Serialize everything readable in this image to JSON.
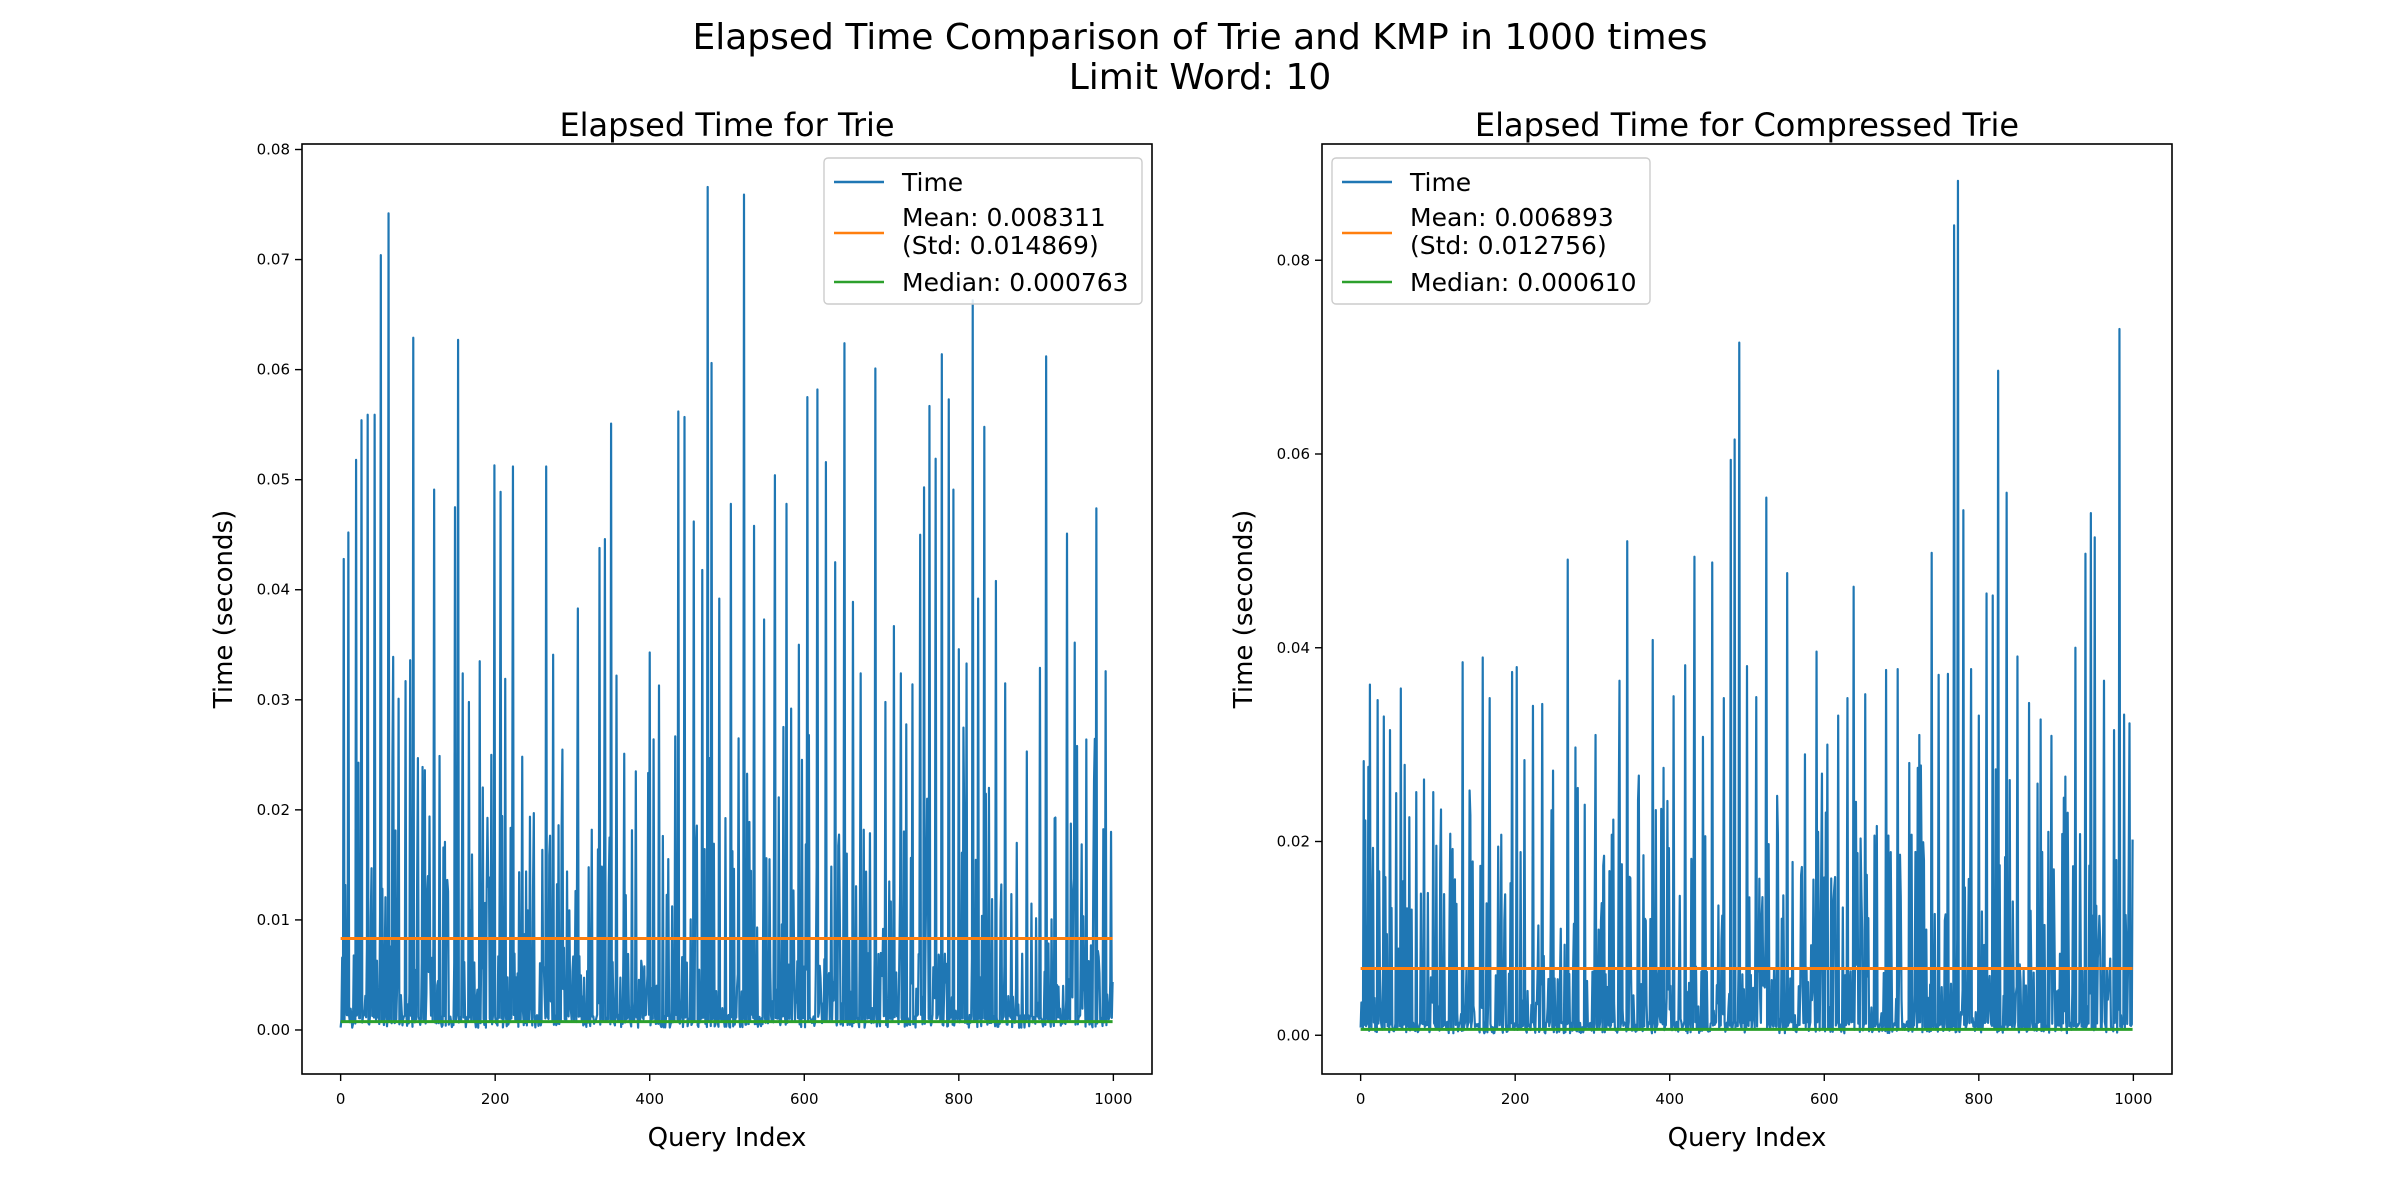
{
  "figure": {
    "suptitle_line1": "Elapsed Time Comparison of Trie and KMP in 1000 times",
    "suptitle_line2": "Limit Word: 10"
  },
  "chart_data": [
    {
      "type": "line",
      "title": "Elapsed Time for Trie",
      "xlabel": "Query Index",
      "ylabel": "Time (seconds)",
      "xlim": [
        -50,
        1050
      ],
      "ylim": [
        -0.004,
        0.0805
      ],
      "xticks": [
        0,
        200,
        400,
        600,
        800,
        1000
      ],
      "yticks": [
        0.0,
        0.01,
        0.02,
        0.03,
        0.04,
        0.05,
        0.06,
        0.07,
        0.08
      ],
      "ytick_decimals": 2,
      "legend_position": "upper right",
      "series": [
        {
          "name": "Time",
          "color": "#1f77b4",
          "num_points": 1000,
          "values_note": "",
          "peaks": [
            [
              4,
              0.0428
            ],
            [
              10,
              0.0452
            ],
            [
              20,
              0.0518
            ],
            [
              27,
              0.0554
            ],
            [
              35,
              0.0559
            ],
            [
              44,
              0.0559
            ],
            [
              52,
              0.0704
            ],
            [
              62,
              0.0742
            ],
            [
              68,
              0.0339
            ],
            [
              75,
              0.0301
            ],
            [
              84,
              0.0317
            ],
            [
              90,
              0.0336
            ],
            [
              94,
              0.0629
            ],
            [
              100,
              0.0247
            ],
            [
              106,
              0.0239
            ],
            [
              121,
              0.0491
            ],
            [
              128,
              0.0249
            ],
            [
              139,
              0.0126
            ],
            [
              148,
              0.0475
            ],
            [
              152,
              0.0627
            ],
            [
              158,
              0.0324
            ],
            [
              166,
              0.0298
            ],
            [
              180,
              0.0335
            ],
            [
              195,
              0.025
            ],
            [
              199,
              0.0513
            ],
            [
              207,
              0.0489
            ],
            [
              213,
              0.0319
            ],
            [
              223,
              0.0512
            ],
            [
              240,
              0.0144
            ],
            [
              250,
              0.0197
            ],
            [
              266,
              0.0512
            ],
            [
              275,
              0.0341
            ],
            [
              282,
              0.0186
            ],
            [
              293,
              0.0144
            ],
            [
              307,
              0.0383
            ],
            [
              325,
              0.0182
            ],
            [
              335,
              0.0438
            ],
            [
              342,
              0.0446
            ],
            [
              350,
              0.0551
            ],
            [
              357,
              0.0322
            ],
            [
              367,
              0.0251
            ],
            [
              382,
              0.0235
            ],
            [
              400,
              0.0343
            ],
            [
              412,
              0.0313
            ],
            [
              437,
              0.0562
            ],
            [
              445,
              0.0557
            ],
            [
              457,
              0.0462
            ],
            [
              468,
              0.0418
            ],
            [
              475,
              0.0766
            ],
            [
              480,
              0.0606
            ],
            [
              490,
              0.0392
            ],
            [
              505,
              0.0478
            ],
            [
              515,
              0.0265
            ],
            [
              522,
              0.0759
            ],
            [
              535,
              0.0458
            ],
            [
              548,
              0.0373
            ],
            [
              562,
              0.0504
            ],
            [
              577,
              0.0478
            ],
            [
              583,
              0.0292
            ],
            [
              593,
              0.035
            ],
            [
              604,
              0.0575
            ],
            [
              617,
              0.0582
            ],
            [
              628,
              0.0516
            ],
            [
              640,
              0.0425
            ],
            [
              652,
              0.0624
            ],
            [
              663,
              0.0389
            ],
            [
              673,
              0.0324
            ],
            [
              692,
              0.0601
            ],
            [
              705,
              0.0298
            ],
            [
              716,
              0.0367
            ],
            [
              725,
              0.0324
            ],
            [
              740,
              0.0314
            ],
            [
              750,
              0.045
            ],
            [
              755,
              0.0493
            ],
            [
              762,
              0.0567
            ],
            [
              770,
              0.0519
            ],
            [
              778,
              0.0614
            ],
            [
              787,
              0.0573
            ],
            [
              793,
              0.0491
            ],
            [
              800,
              0.0346
            ],
            [
              810,
              0.0333
            ],
            [
              818,
              0.0663
            ],
            [
              825,
              0.0392
            ],
            [
              833,
              0.0548
            ],
            [
              848,
              0.0408
            ],
            [
              860,
              0.0315
            ],
            [
              875,
              0.017
            ],
            [
              888,
              0.0253
            ],
            [
              905,
              0.0329
            ],
            [
              913,
              0.0612
            ],
            [
              925,
              0.0193
            ],
            [
              940,
              0.0451
            ],
            [
              950,
              0.0352
            ],
            [
              965,
              0.0264
            ],
            [
              978,
              0.0474
            ],
            [
              990,
              0.0326
            ],
            [
              997,
              0.018
            ]
          ]
        },
        {
          "name": "Mean: 0.008311\n(Std: 0.014869)",
          "color": "#ff7f0e",
          "value": 0.008311
        },
        {
          "name": "Median: 0.000763",
          "color": "#2ca02c",
          "value": 0.000763
        }
      ]
    },
    {
      "type": "line",
      "title": "Elapsed Time for Compressed Trie",
      "xlabel": "Query Index",
      "ylabel": "Time (seconds)",
      "xlim": [
        -50,
        1050
      ],
      "ylim": [
        -0.004,
        0.092
      ],
      "xticks": [
        0,
        200,
        400,
        600,
        800,
        1000
      ],
      "yticks": [
        0.0,
        0.02,
        0.04,
        0.06,
        0.08
      ],
      "ytick_decimals": 2,
      "legend_position": "upper left",
      "series": [
        {
          "name": "Time",
          "color": "#1f77b4",
          "num_points": 1000,
          "values_note": "",
          "peaks": [
            [
              4,
              0.0283
            ],
            [
              12,
              0.0362
            ],
            [
              22,
              0.0346
            ],
            [
              30,
              0.0329
            ],
            [
              38,
              0.0315
            ],
            [
              46,
              0.025
            ],
            [
              52,
              0.0358
            ],
            [
              63,
              0.0225
            ],
            [
              72,
              0.0251
            ],
            [
              82,
              0.0264
            ],
            [
              94,
              0.0251
            ],
            [
              104,
              0.0233
            ],
            [
              116,
              0.0208
            ],
            [
              132,
              0.0385
            ],
            [
              142,
              0.0227
            ],
            [
              158,
              0.039
            ],
            [
              167,
              0.0348
            ],
            [
              182,
              0.0207
            ],
            [
              196,
              0.0375
            ],
            [
              202,
              0.038
            ],
            [
              212,
              0.0284
            ],
            [
              223,
              0.034
            ],
            [
              235,
              0.0342
            ],
            [
              259,
              0.011
            ],
            [
              268,
              0.0491
            ],
            [
              278,
              0.0297
            ],
            [
              290,
              0.0238
            ],
            [
              304,
              0.031
            ],
            [
              325,
              0.0207
            ],
            [
              335,
              0.0366
            ],
            [
              345,
              0.051
            ],
            [
              360,
              0.0268
            ],
            [
              378,
              0.0408
            ],
            [
              392,
              0.0276
            ],
            [
              405,
              0.035
            ],
            [
              420,
              0.0382
            ],
            [
              432,
              0.0494
            ],
            [
              443,
              0.0308
            ],
            [
              455,
              0.0488
            ],
            [
              470,
              0.0348
            ],
            [
              479,
              0.0594
            ],
            [
              484,
              0.0615
            ],
            [
              490,
              0.0715
            ],
            [
              500,
              0.0381
            ],
            [
              512,
              0.0349
            ],
            [
              525,
              0.0555
            ],
            [
              540,
              0.0207
            ],
            [
              552,
              0.0477
            ],
            [
              575,
              0.029
            ],
            [
              590,
              0.0396
            ],
            [
              604,
              0.03
            ],
            [
              618,
              0.033
            ],
            [
              630,
              0.0348
            ],
            [
              638,
              0.0463
            ],
            [
              653,
              0.0352
            ],
            [
              668,
              0.0216
            ],
            [
              680,
              0.0377
            ],
            [
              695,
              0.0378
            ],
            [
              710,
              0.0281
            ],
            [
              723,
              0.031
            ],
            [
              739,
              0.0498
            ],
            [
              748,
              0.0372
            ],
            [
              760,
              0.0373
            ],
            [
              768,
              0.0836
            ],
            [
              773,
              0.0882
            ],
            [
              780,
              0.0542
            ],
            [
              790,
              0.0378
            ],
            [
              800,
              0.033
            ],
            [
              810,
              0.0456
            ],
            [
              818,
              0.0454
            ],
            [
              825,
              0.0686
            ],
            [
              836,
              0.056
            ],
            [
              850,
              0.0391
            ],
            [
              865,
              0.0343
            ],
            [
              880,
              0.0326
            ],
            [
              894,
              0.0309
            ],
            [
              912,
              0.0267
            ],
            [
              925,
              0.04
            ],
            [
              938,
              0.0497
            ],
            [
              945,
              0.0539
            ],
            [
              950,
              0.0514
            ],
            [
              962,
              0.0366
            ],
            [
              975,
              0.0315
            ],
            [
              982,
              0.0729
            ],
            [
              988,
              0.0331
            ],
            [
              995,
              0.0322
            ],
            [
              999,
              0.0202
            ]
          ]
        },
        {
          "name": "Mean: 0.006893\n(Std: 0.012756)",
          "color": "#ff7f0e",
          "value": 0.006893
        },
        {
          "name": "Median: 0.000610",
          "color": "#2ca02c",
          "value": 0.00061
        }
      ]
    }
  ]
}
